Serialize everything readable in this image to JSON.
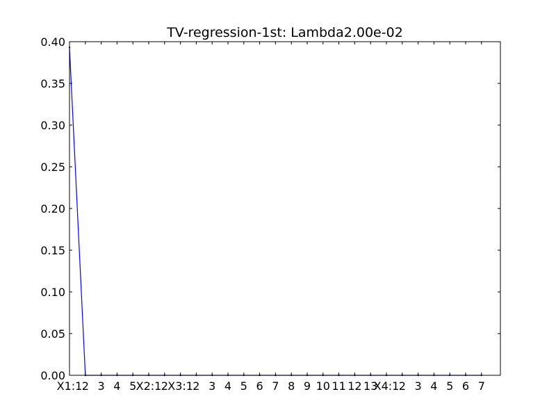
{
  "chart_data": {
    "type": "line",
    "title": "TV-regression-1st: Lambda2.00e-02",
    "xlabel": "",
    "ylabel": "",
    "ylim": [
      0,
      0.4
    ],
    "yticks": [
      "0.00",
      "0.05",
      "0.10",
      "0.15",
      "0.20",
      "0.25",
      "0.30",
      "0.35",
      "0.40"
    ],
    "categories": [
      "X1:1",
      "2",
      "3",
      "4",
      "5",
      "X2:1",
      "2",
      "X3:1",
      "2",
      "3",
      "4",
      "5",
      "6",
      "7",
      "8",
      "9",
      "10",
      "11",
      "12",
      "13",
      "X4:1",
      "2",
      "3",
      "4",
      "5",
      "6",
      "7"
    ],
    "series": [
      {
        "color": "#0000ff",
        "values": [
          0.393,
          0,
          0,
          0,
          0,
          0,
          0,
          0,
          0,
          0,
          0,
          0,
          0,
          0,
          0,
          0,
          0,
          0,
          0,
          0,
          0,
          0,
          0,
          0,
          0,
          0,
          0
        ]
      }
    ],
    "grid": false
  }
}
